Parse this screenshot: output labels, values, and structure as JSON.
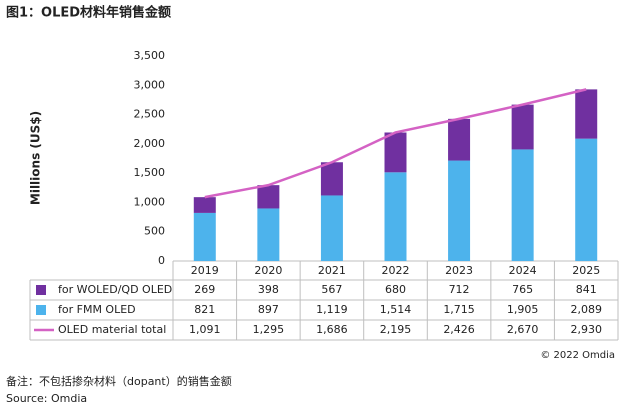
{
  "chart_data": {
    "type": "bar",
    "title": "图1：OLED材料年销售金额",
    "y_label": "Millions (US$)",
    "categories": [
      "2019",
      "2020",
      "2021",
      "2022",
      "2023",
      "2024",
      "2025"
    ],
    "series": [
      {
        "name": "for WOLED/QD OLED",
        "color": "#7030a0",
        "values": [
          269,
          398,
          567,
          680,
          712,
          765,
          841
        ]
      },
      {
        "name": "for FMM OLED",
        "color": "#4db3ec",
        "values": [
          821,
          897,
          1119,
          1514,
          1715,
          1905,
          2089
        ],
        "value_labels": [
          "821",
          "897",
          "1,119",
          "1,514",
          "1,715",
          "1,905",
          "2,089"
        ]
      },
      {
        "name": "OLED material total",
        "type": "line",
        "color": "#d462c4",
        "values": [
          1091,
          1295,
          1686,
          2195,
          2426,
          2670,
          2930
        ],
        "value_labels": [
          "1,091",
          "1,295",
          "1,686",
          "2,195",
          "2,426",
          "2,670",
          "2,930"
        ]
      }
    ],
    "ylim": [
      0,
      3500
    ],
    "yticks": [
      0,
      500,
      {
        "value": 1000,
        "label": "1,000"
      },
      {
        "value": 1500,
        "label": "1,500"
      },
      {
        "value": 2000,
        "label": "2,000"
      },
      {
        "value": 2500,
        "label": "2,500"
      },
      {
        "value": 3000,
        "label": "3,000"
      },
      {
        "value": 3500,
        "label": "3,500"
      }
    ],
    "grid": false
  },
  "footer": {
    "copyright": "© 2022 Omdia",
    "note": "备注：不包括掺杂材料（dopant）的销售金额",
    "source": "Source: Omdia"
  }
}
